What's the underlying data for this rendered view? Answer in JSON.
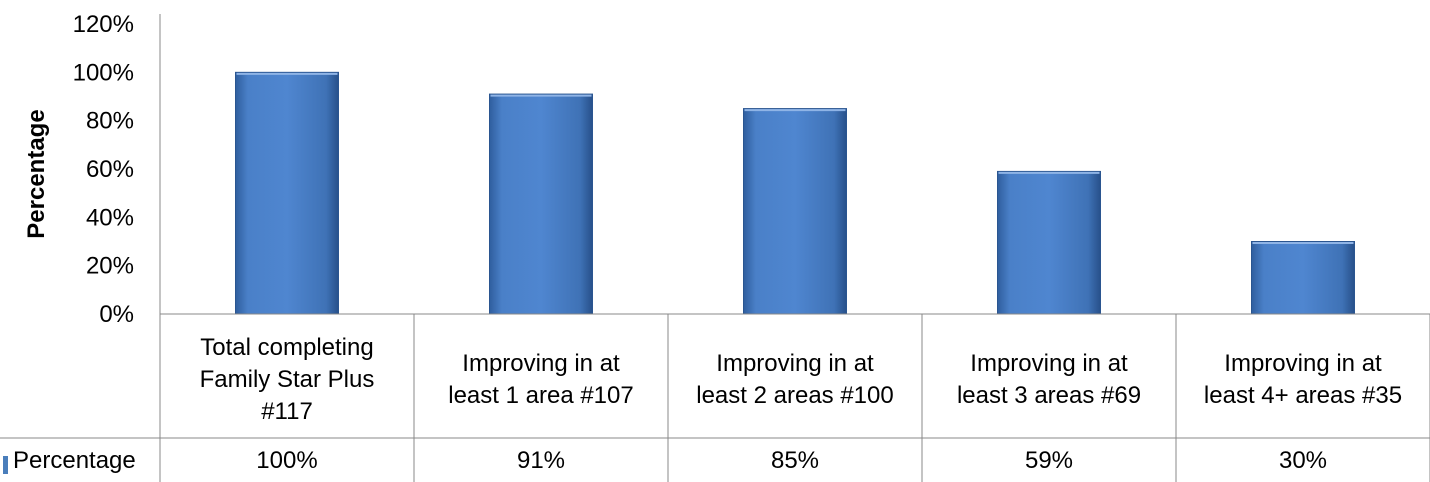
{
  "chart_data": {
    "type": "bar",
    "ylabel": "Percentage",
    "ylim": [
      0,
      120
    ],
    "yticks": [
      "0%",
      "20%",
      "40%",
      "60%",
      "80%",
      "100%",
      "120%"
    ],
    "grid": false,
    "data_table": true,
    "categories": [
      [
        "Total completing",
        "Family Star Plus",
        "#117"
      ],
      [
        "Improving in at",
        "least 1 area #107"
      ],
      [
        "Improving in at",
        "least 2 areas #100"
      ],
      [
        "Improving in at",
        "least 3 areas #69"
      ],
      [
        "Improving in at",
        "least 4+ areas #35"
      ]
    ],
    "series": [
      {
        "name": "Percentage",
        "values": [
          100,
          91,
          85,
          59,
          30
        ],
        "labels": [
          "100%",
          "91%",
          "85%",
          "59%",
          "30%"
        ],
        "color": "#4a7ebb"
      }
    ]
  }
}
